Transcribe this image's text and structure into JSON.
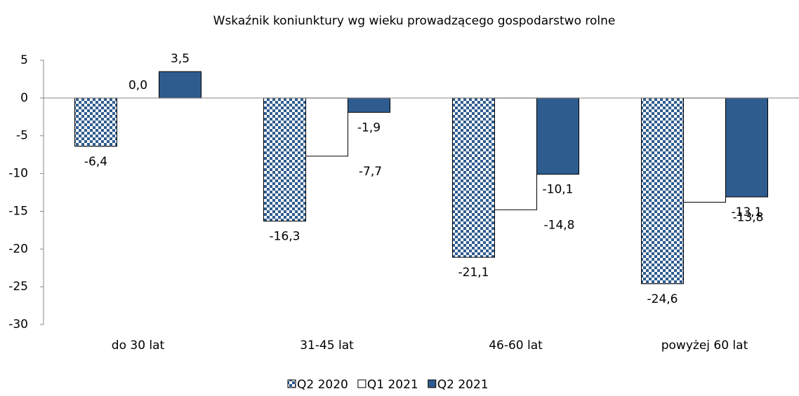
{
  "chart_data": {
    "type": "bar",
    "title": "Wskaźnik koniunktury wg wieku prowadzącego gospodarstwo rolne",
    "categories": [
      "do 30 lat",
      "31-45 lat",
      "46-60 lat",
      "powyżej 60 lat"
    ],
    "series": [
      {
        "name": "Q2 2020",
        "color": "#2f5c8f",
        "pattern": "checkerboard",
        "values": [
          -6.4,
          -16.3,
          -21.1,
          -24.6
        ],
        "value_labels": [
          "-6,4",
          "-16,3",
          "-21,1",
          "-24,6"
        ]
      },
      {
        "name": "Q1 2021",
        "color": "#ffffff",
        "values": [
          0.0,
          -7.7,
          -14.8,
          -13.8
        ],
        "value_labels": [
          "0,0",
          "-7,7",
          "-14,8",
          "-13,8"
        ]
      },
      {
        "name": "Q2 2021",
        "color": "#2f5c8f",
        "values": [
          3.5,
          -1.9,
          -10.1,
          -13.1
        ],
        "value_labels": [
          "3,5",
          "-1,9",
          "-10,1",
          "-13,1"
        ]
      }
    ],
    "ylim": [
      -30,
      5
    ],
    "yticks": [
      -30,
      -25,
      -20,
      -15,
      -10,
      -5,
      0,
      5
    ],
    "legend": "bottom"
  }
}
